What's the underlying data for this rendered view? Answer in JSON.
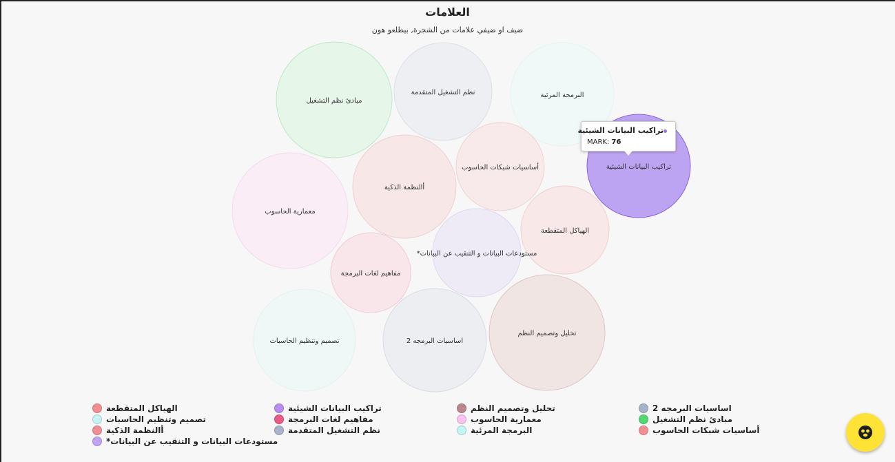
{
  "title": "العلامات",
  "subtitle": "ضيف او ضيفي علامات من الشجرة, بيطلعو هون",
  "tooltip": {
    "title": "تراكيب البيانات الشيئية",
    "value_label": "MARK:",
    "value": "76",
    "dot_color": "#9b6fe8"
  },
  "chart_data": {
    "type": "bubble",
    "title": "العلامات",
    "subtitle": "ضيف او ضيفي علامات من الشجرة, بيطلعو هون",
    "legend_position": "bottom",
    "series": [
      {
        "name": "مبادئ نظم التشغيل",
        "color": "#52d873",
        "fill": "#e6f7ea",
        "stroke": "#bfe9c9"
      },
      {
        "name": "نظم التشغيل المتقدمة",
        "color": "#a9b4cc",
        "fill": "#eeeff2",
        "stroke": "#dcdfe5"
      },
      {
        "name": "البرمجة المرئية",
        "color": "#c2f5f3",
        "fill": "#f0f9f8",
        "stroke": "#e6f2f1"
      },
      {
        "name": "تراكيب البيانات الشيئية",
        "color": "#b78ef0",
        "fill": "#bda4f2",
        "stroke": "#8a62df",
        "highlighted": true,
        "value": 76
      },
      {
        "name": "معمارية الحاسوب",
        "color": "#f9c3ee",
        "fill": "#faedf6",
        "stroke": "#f2dcec"
      },
      {
        "name": "أالنظمة الذكية",
        "color": "#ef8e96",
        "fill": "#f8e7e7",
        "stroke": "#efcfd1"
      },
      {
        "name": "أساسيات شبكات الحاسوب",
        "color": "#f28f93",
        "fill": "#f8eaea",
        "stroke": "#efd3d4"
      },
      {
        "name": "الهياكل المتقطعة",
        "color": "#f08f8f",
        "fill": "#f8e8e7",
        "stroke": "#efd1cf"
      },
      {
        "name": "مستودعات البيانات و التنقيب عن البيانات*",
        "color": "#c0a4f2",
        "fill": "#eeebf6",
        "stroke": "#dfd8ee"
      },
      {
        "name": "مفاهيم لغات البرمجة",
        "color": "#ea5a87",
        "fill": "#f9e6ea",
        "stroke": "#f0cbd4"
      },
      {
        "name": "تصميم وتنظيم الحاسبات",
        "color": "#c6f4f3",
        "fill": "#eff8f6",
        "stroke": "#e3f1ef"
      },
      {
        "name": "اساسيات البرمجه 2",
        "color": "#a7b2cb",
        "fill": "#eceef2",
        "stroke": "#d9dce4"
      },
      {
        "name": "تحليل وتصميم النظم",
        "color": "#b9868c",
        "fill": "#f1e5e4",
        "stroke": "#dfc7c8"
      }
    ]
  },
  "legend": {
    "columns": [
      [
        "الهياكل المتقطعة",
        "تصميم وتنظيم الحاسبات",
        "أالنظمة الذكية",
        "مستودعات البيانات و التنقيب عن البيانات*"
      ],
      [
        "تراكيب البيانات الشيئية",
        "مفاهيم لغات البرمجة",
        "نظم التشغيل المتقدمة"
      ],
      [
        "تحليل وتصميم النظم",
        "معمارية الحاسوب",
        "البرمجة المرئية"
      ],
      [
        "اساسيات البرمجه 2",
        "مبادئ نظم التشغيل",
        "أساسيات شبكات الحاسوب"
      ]
    ]
  },
  "fab": {
    "icon": "bear-face-icon",
    "color": "#ffe236"
  }
}
